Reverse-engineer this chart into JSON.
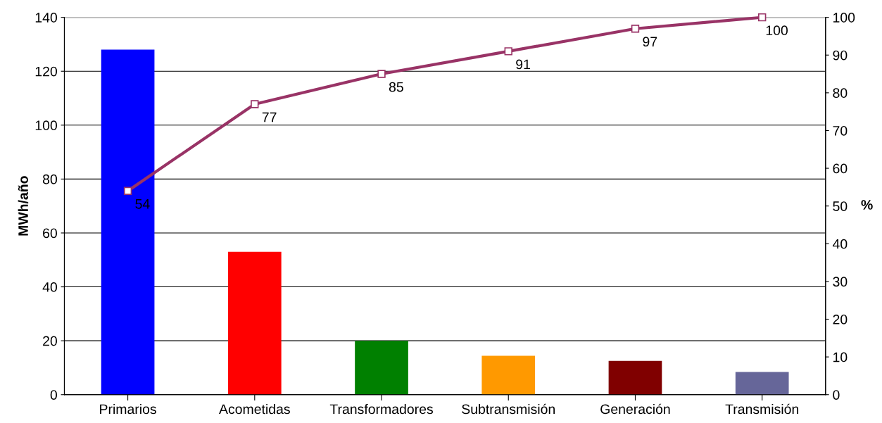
{
  "chart_data": {
    "type": "bar",
    "ylabel": "MWh/año",
    "y2label": "%",
    "categories": [
      "Primarios",
      "Acometidas",
      "Transformadores",
      "Subtransmisión",
      "Generación",
      "Transmisión"
    ],
    "series": [
      {
        "colors": [
          "#0000ff",
          "#ff0000",
          "#008000",
          "#ff9900",
          "#800000",
          "#666699"
        ],
        "values": [
          128,
          53,
          20,
          14.4,
          12.5,
          8.4
        ]
      },
      {
        "type": "line",
        "axis": "y2",
        "color": "#993366",
        "values": [
          54,
          77,
          85,
          91,
          97,
          100
        ],
        "data_labels": true,
        "marker": "square",
        "line_style": "solid"
      }
    ],
    "ylim": [
      0,
      140
    ],
    "yticks": [
      0,
      20,
      40,
      60,
      80,
      100,
      120,
      140
    ],
    "y2lim": [
      0,
      100
    ],
    "y2ticks": [
      0,
      10,
      20,
      30,
      40,
      50,
      60,
      70,
      80,
      90,
      100
    ],
    "grid": "y",
    "legend": false
  }
}
